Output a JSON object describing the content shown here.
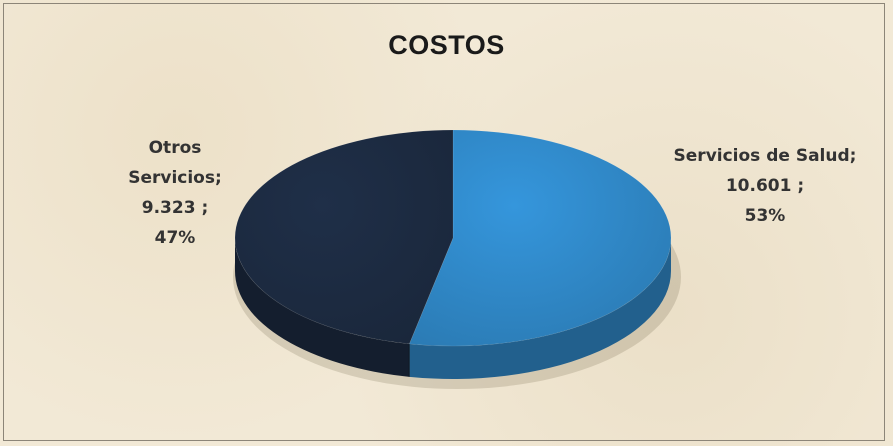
{
  "chart_data": {
    "type": "pie",
    "title": "COSTOS",
    "slices": [
      {
        "name": "Servicios de Salud",
        "value": 10601,
        "value_label": "10.601",
        "percent": 53,
        "color": "#2f86c4",
        "label_lines": [
          "Servicios de Salud;",
          "10.601 ;",
          "53%"
        ]
      },
      {
        "name": "Otros Servicios",
        "value": 9323,
        "value_label": "9.323",
        "percent": 47,
        "color": "#1c2a40",
        "label_lines": [
          "Otros",
          "Servicios;",
          "9.323 ;",
          "47%"
        ]
      }
    ],
    "style": "3d-pie",
    "legend": "none"
  }
}
